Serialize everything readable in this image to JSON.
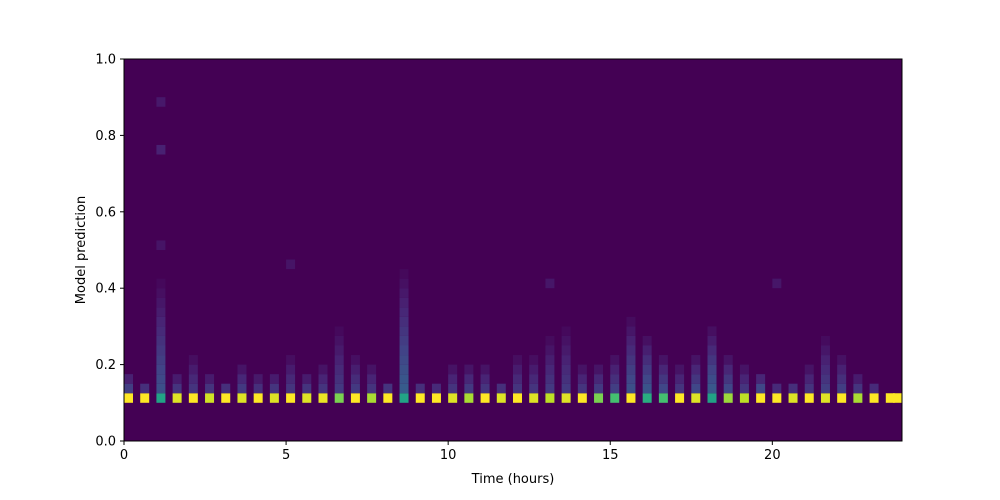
{
  "figure": {
    "background_color": "#ffffff"
  },
  "chart_data": {
    "type": "heatmap",
    "title": "",
    "xlabel": "Time (hours)",
    "ylabel": "Model prediction",
    "xlim": [
      0,
      24
    ],
    "ylim": [
      0.0,
      1.0
    ],
    "x_tick_labels": [
      "0",
      "5",
      "10",
      "15",
      "20"
    ],
    "x_tick_values": [
      0,
      5,
      10,
      15,
      20
    ],
    "y_tick_labels": [
      "0.0",
      "0.2",
      "0.4",
      "0.6",
      "0.8",
      "1.0"
    ],
    "y_tick_values": [
      0.0,
      0.2,
      0.4,
      0.6,
      0.8,
      1.0
    ],
    "grid": false,
    "legend": "none",
    "colormap": "viridis",
    "zero_count_color": "#440154",
    "max_count_color": "#fde725",
    "y_bin_size": 0.025,
    "main_band": {
      "y_bottom": 0.1,
      "y_top": 0.125,
      "description": "dominant row of high-count cells at model prediction ~0.1, one segment per half-hour"
    },
    "columns": [
      {
        "t": 0.0,
        "band": 1.0,
        "streak_top": 0.165,
        "streak_strength": 0.6,
        "dots": []
      },
      {
        "t": 0.5,
        "band": 1.0,
        "streak_top": 0.155,
        "streak_strength": 0.45,
        "dots": []
      },
      {
        "t": 1.0,
        "band": 0.58,
        "streak_top": 0.42,
        "streak_strength": 0.8,
        "dots": [
          [
            0.5,
            0.18
          ],
          [
            0.75,
            0.3
          ],
          [
            0.875,
            0.22
          ]
        ]
      },
      {
        "t": 1.5,
        "band": 0.95,
        "streak_top": 0.17,
        "streak_strength": 0.5,
        "dots": []
      },
      {
        "t": 2.0,
        "band": 1.0,
        "streak_top": 0.23,
        "streak_strength": 0.5,
        "dots": []
      },
      {
        "t": 2.5,
        "band": 0.93,
        "streak_top": 0.18,
        "streak_strength": 0.5,
        "dots": []
      },
      {
        "t": 3.0,
        "band": 1.0,
        "streak_top": 0.155,
        "streak_strength": 0.45,
        "dots": []
      },
      {
        "t": 3.5,
        "band": 0.95,
        "streak_top": 0.21,
        "streak_strength": 0.55,
        "dots": []
      },
      {
        "t": 4.0,
        "band": 1.0,
        "streak_top": 0.17,
        "streak_strength": 0.45,
        "dots": []
      },
      {
        "t": 4.5,
        "band": 0.95,
        "streak_top": 0.185,
        "streak_strength": 0.5,
        "dots": []
      },
      {
        "t": 5.0,
        "band": 1.0,
        "streak_top": 0.22,
        "streak_strength": 0.5,
        "dots": [
          [
            0.45,
            0.18
          ]
        ]
      },
      {
        "t": 5.5,
        "band": 0.95,
        "streak_top": 0.185,
        "streak_strength": 0.5,
        "dots": []
      },
      {
        "t": 6.0,
        "band": 0.97,
        "streak_top": 0.195,
        "streak_strength": 0.5,
        "dots": []
      },
      {
        "t": 6.5,
        "band": 0.8,
        "streak_top": 0.31,
        "streak_strength": 0.55,
        "dots": []
      },
      {
        "t": 7.0,
        "band": 1.0,
        "streak_top": 0.235,
        "streak_strength": 0.55,
        "dots": []
      },
      {
        "t": 7.5,
        "band": 0.87,
        "streak_top": 0.2,
        "streak_strength": 0.5,
        "dots": []
      },
      {
        "t": 8.0,
        "band": 1.0,
        "streak_top": 0.15,
        "streak_strength": 0.5,
        "dots": []
      },
      {
        "t": 8.5,
        "band": 0.58,
        "streak_top": 0.45,
        "streak_strength": 0.95,
        "dots": []
      },
      {
        "t": 9.0,
        "band": 1.0,
        "streak_top": 0.16,
        "streak_strength": 0.45,
        "dots": []
      },
      {
        "t": 9.5,
        "band": 1.0,
        "streak_top": 0.15,
        "streak_strength": 0.4,
        "dots": []
      },
      {
        "t": 10.0,
        "band": 0.95,
        "streak_top": 0.196,
        "streak_strength": 0.5,
        "dots": []
      },
      {
        "t": 10.5,
        "band": 0.87,
        "streak_top": 0.19,
        "streak_strength": 0.55,
        "dots": []
      },
      {
        "t": 11.0,
        "band": 1.0,
        "streak_top": 0.19,
        "streak_strength": 0.5,
        "dots": []
      },
      {
        "t": 11.5,
        "band": 0.95,
        "streak_top": 0.16,
        "streak_strength": 0.45,
        "dots": []
      },
      {
        "t": 12.0,
        "band": 1.0,
        "streak_top": 0.22,
        "streak_strength": 0.5,
        "dots": []
      },
      {
        "t": 12.5,
        "band": 0.95,
        "streak_top": 0.22,
        "streak_strength": 0.5,
        "dots": []
      },
      {
        "t": 13.0,
        "band": 0.9,
        "streak_top": 0.265,
        "streak_strength": 0.55,
        "dots": [
          [
            0.4,
            0.2
          ]
        ]
      },
      {
        "t": 13.5,
        "band": 0.95,
        "streak_top": 0.305,
        "streak_strength": 0.55,
        "dots": []
      },
      {
        "t": 14.0,
        "band": 1.0,
        "streak_top": 0.19,
        "streak_strength": 0.5,
        "dots": []
      },
      {
        "t": 14.5,
        "band": 0.8,
        "streak_top": 0.21,
        "streak_strength": 0.55,
        "dots": []
      },
      {
        "t": 15.0,
        "band": 0.7,
        "streak_top": 0.22,
        "streak_strength": 0.6,
        "dots": []
      },
      {
        "t": 15.5,
        "band": 1.0,
        "streak_top": 0.33,
        "streak_strength": 0.8,
        "dots": []
      },
      {
        "t": 16.0,
        "band": 0.62,
        "streak_top": 0.265,
        "streak_strength": 0.85,
        "dots": []
      },
      {
        "t": 16.5,
        "band": 0.7,
        "streak_top": 0.23,
        "streak_strength": 0.7,
        "dots": []
      },
      {
        "t": 17.0,
        "band": 1.0,
        "streak_top": 0.2,
        "streak_strength": 0.5,
        "dots": []
      },
      {
        "t": 17.5,
        "band": 0.95,
        "streak_top": 0.22,
        "streak_strength": 0.7,
        "dots": []
      },
      {
        "t": 18.0,
        "band": 0.57,
        "streak_top": 0.29,
        "streak_strength": 0.9,
        "dots": []
      },
      {
        "t": 18.5,
        "band": 0.85,
        "streak_top": 0.235,
        "streak_strength": 0.7,
        "dots": []
      },
      {
        "t": 19.0,
        "band": 0.9,
        "streak_top": 0.2,
        "streak_strength": 0.5,
        "dots": []
      },
      {
        "t": 19.5,
        "band": 1.0,
        "streak_top": 0.18,
        "streak_strength": 0.7,
        "dots": []
      },
      {
        "t": 20.0,
        "band": 1.0,
        "streak_top": 0.15,
        "streak_strength": 0.4,
        "dots": [
          [
            0.4,
            0.2
          ]
        ]
      },
      {
        "t": 20.5,
        "band": 0.95,
        "streak_top": 0.16,
        "streak_strength": 0.45,
        "dots": []
      },
      {
        "t": 21.0,
        "band": 1.0,
        "streak_top": 0.19,
        "streak_strength": 0.5,
        "dots": []
      },
      {
        "t": 21.5,
        "band": 0.95,
        "streak_top": 0.27,
        "streak_strength": 0.6,
        "dots": []
      },
      {
        "t": 22.0,
        "band": 1.0,
        "streak_top": 0.215,
        "streak_strength": 0.6,
        "dots": []
      },
      {
        "t": 22.5,
        "band": 0.87,
        "streak_top": 0.17,
        "streak_strength": 0.5,
        "dots": []
      },
      {
        "t": 23.0,
        "band": 1.0,
        "streak_top": 0.14,
        "streak_strength": 0.4,
        "dots": []
      },
      {
        "t": 23.5,
        "band": 1.0,
        "streak_top": 0.13,
        "streak_strength": 0.35,
        "dots": []
      },
      {
        "t": 23.78,
        "band": 1.0,
        "streak_top": 0.13,
        "streak_strength": 0.3,
        "dots": []
      }
    ],
    "viridis_stops": [
      "#440154",
      "#482475",
      "#414487",
      "#355f8d",
      "#2a788e",
      "#21918c",
      "#22a884",
      "#44bf70",
      "#7ad151",
      "#bddf26",
      "#fde725"
    ]
  }
}
